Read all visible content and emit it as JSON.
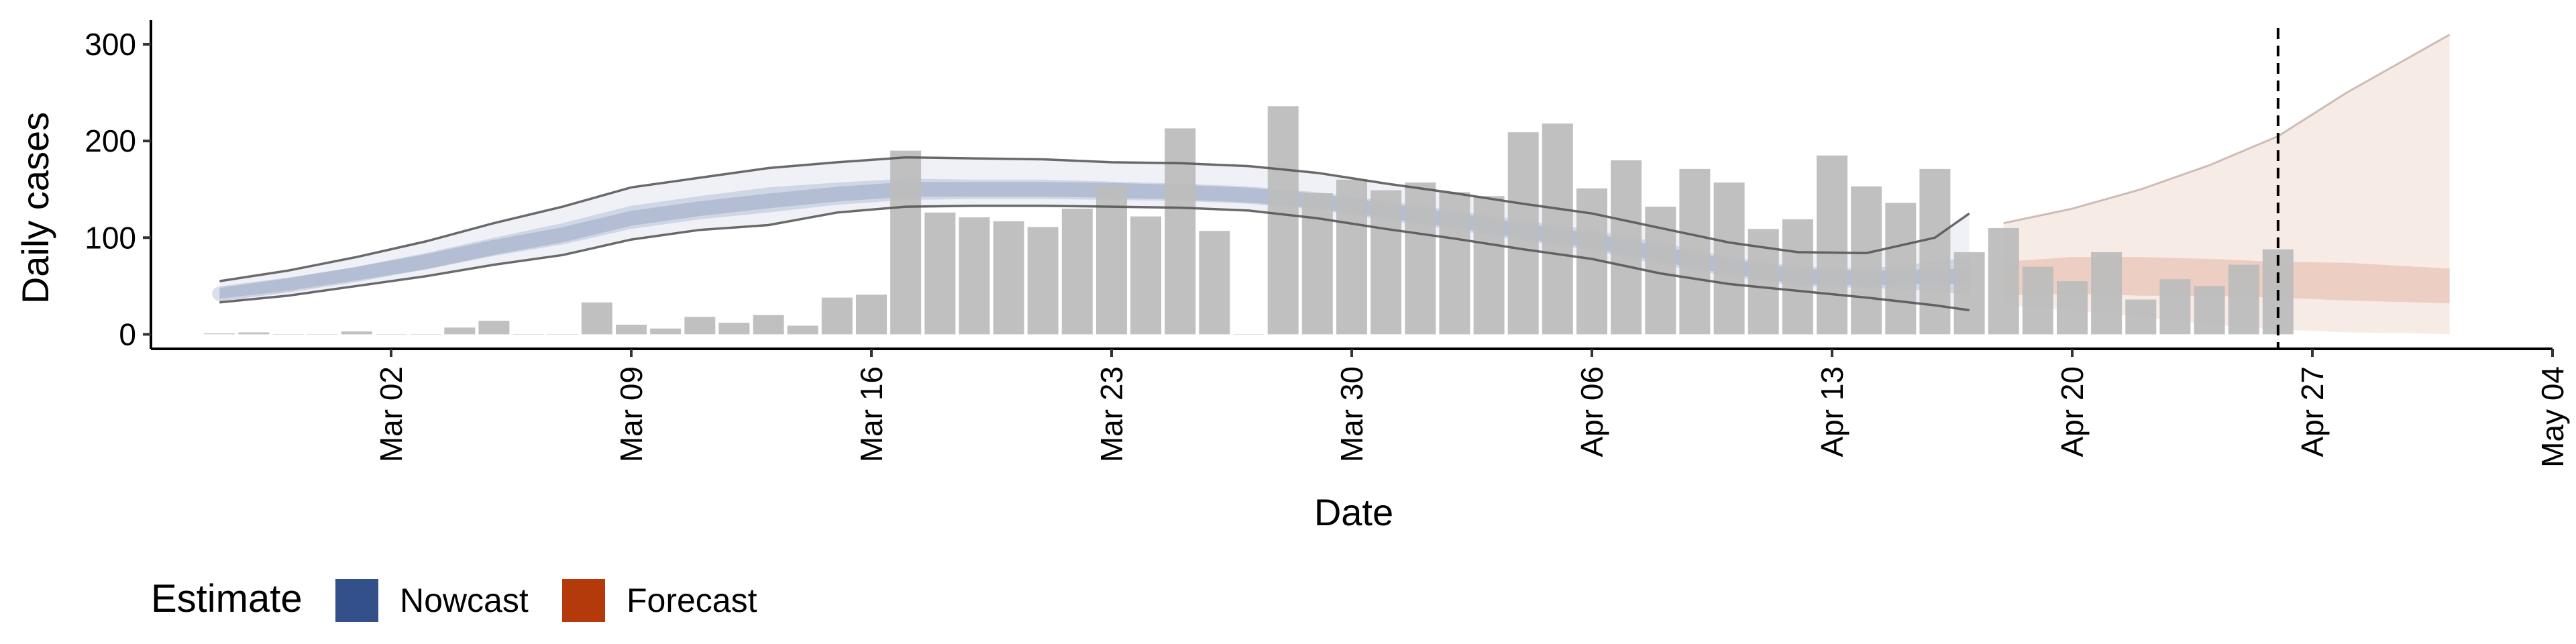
{
  "chart_data": {
    "type": "bar",
    "xlabel": "Date",
    "ylabel": "Daily cases",
    "x_ticks": [
      "Mar 02",
      "Mar 09",
      "Mar 16",
      "Mar 23",
      "Mar 30",
      "Apr 06",
      "Apr 13",
      "Apr 20",
      "Apr 27",
      "May 04"
    ],
    "y_ticks": [
      "0",
      "100",
      "200",
      "300"
    ],
    "ylim": [
      -15,
      325
    ],
    "xlim": [
      "2020-02-24",
      "2020-05-04"
    ],
    "grid": false,
    "legend": {
      "title": "Estimate",
      "placement": "bottom-left",
      "entries": [
        {
          "label": "Nowcast",
          "color": "#34508a"
        },
        {
          "label": "Forecast",
          "color": "#b43a0c"
        }
      ]
    },
    "vline_date": "2020-04-26",
    "bar_color": "#bdbdbd",
    "bars": {
      "dates": [
        "2020-02-26",
        "2020-02-27",
        "2020-02-28",
        "2020-02-29",
        "2020-03-01",
        "2020-03-02",
        "2020-03-03",
        "2020-03-04",
        "2020-03-05",
        "2020-03-06",
        "2020-03-07",
        "2020-03-08",
        "2020-03-09",
        "2020-03-10",
        "2020-03-11",
        "2020-03-12",
        "2020-03-13",
        "2020-03-14",
        "2020-03-15",
        "2020-03-16",
        "2020-03-17",
        "2020-03-18",
        "2020-03-19",
        "2020-03-20",
        "2020-03-21",
        "2020-03-22",
        "2020-03-23",
        "2020-03-24",
        "2020-03-25",
        "2020-03-26",
        "2020-03-27",
        "2020-03-28",
        "2020-03-29",
        "2020-03-30",
        "2020-03-31",
        "2020-04-01",
        "2020-04-02",
        "2020-04-03",
        "2020-04-04",
        "2020-04-05",
        "2020-04-06",
        "2020-04-07",
        "2020-04-08",
        "2020-04-09",
        "2020-04-10",
        "2020-04-11",
        "2020-04-12",
        "2020-04-13",
        "2020-04-14",
        "2020-04-15",
        "2020-04-16",
        "2020-04-17",
        "2020-04-18",
        "2020-04-19",
        "2020-04-20",
        "2020-04-21",
        "2020-04-22",
        "2020-04-23",
        "2020-04-24",
        "2020-04-25",
        "2020-04-26"
      ],
      "values": [
        1,
        2,
        0,
        0,
        3,
        0,
        0,
        7,
        14,
        0,
        0,
        33,
        10,
        6,
        18,
        12,
        20,
        9,
        38,
        41,
        190,
        126,
        121,
        117,
        111,
        130,
        153,
        122,
        213,
        107,
        0,
        236,
        146,
        160,
        149,
        157,
        147,
        143,
        209,
        218,
        151,
        180,
        132,
        171,
        157,
        109,
        119,
        185,
        153,
        136,
        171,
        85,
        110,
        70,
        55,
        85,
        36,
        57,
        50,
        72,
        88
      ]
    },
    "nowcast": {
      "dates": [
        "2020-02-26",
        "2020-02-28",
        "2020-03-01",
        "2020-03-03",
        "2020-03-05",
        "2020-03-07",
        "2020-03-09",
        "2020-03-11",
        "2020-03-13",
        "2020-03-15",
        "2020-03-17",
        "2020-03-19",
        "2020-03-21",
        "2020-03-23",
        "2020-03-25",
        "2020-03-27",
        "2020-03-29",
        "2020-03-31",
        "2020-04-02",
        "2020-04-04",
        "2020-04-06",
        "2020-04-08",
        "2020-04-10",
        "2020-04-12",
        "2020-04-14",
        "2020-04-16",
        "2020-04-17"
      ],
      "upper90": [
        55,
        66,
        80,
        96,
        115,
        132,
        152,
        162,
        172,
        178,
        183,
        182,
        181,
        178,
        177,
        174,
        167,
        156,
        146,
        135,
        125,
        110,
        95,
        85,
        84,
        100,
        125
      ],
      "upper50": [
        48,
        58,
        70,
        84,
        100,
        115,
        133,
        143,
        152,
        157,
        161,
        160,
        160,
        158,
        156,
        153,
        147,
        138,
        128,
        118,
        108,
        95,
        80,
        70,
        68,
        75,
        80
      ],
      "median": [
        42,
        51,
        62,
        75,
        90,
        103,
        120,
        130,
        138,
        145,
        150,
        150,
        150,
        149,
        147,
        144,
        138,
        128,
        118,
        107,
        97,
        83,
        70,
        60,
        58,
        60,
        60
      ],
      "lower50": [
        37,
        45,
        56,
        67,
        81,
        93,
        109,
        119,
        126,
        134,
        139,
        140,
        140,
        139,
        138,
        135,
        129,
        118,
        108,
        97,
        87,
        72,
        60,
        50,
        48,
        45,
        40
      ],
      "lower90": [
        33,
        40,
        50,
        60,
        72,
        82,
        98,
        108,
        113,
        126,
        132,
        133,
        133,
        132,
        131,
        128,
        120,
        109,
        99,
        88,
        78,
        63,
        52,
        45,
        38,
        30,
        25
      ]
    },
    "forecast": {
      "dates": [
        "2020-04-18",
        "2020-04-20",
        "2020-04-22",
        "2020-04-24",
        "2020-04-26",
        "2020-04-28",
        "2020-04-30",
        "2020-05-01"
      ],
      "upper90": [
        115,
        130,
        150,
        175,
        205,
        250,
        290,
        310
      ],
      "upper50": [
        75,
        80,
        80,
        78,
        75,
        74,
        70,
        68
      ],
      "median": [
        55,
        58,
        58,
        57,
        55,
        53,
        50,
        48
      ],
      "lower50": [
        40,
        42,
        40,
        40,
        38,
        35,
        33,
        32
      ],
      "lower90": [
        30,
        25,
        18,
        10,
        5,
        2,
        1,
        0
      ]
    },
    "nowcast_color": "#34508a",
    "forecast_color": "#b43a0c",
    "outer_line_color": "#505050"
  }
}
